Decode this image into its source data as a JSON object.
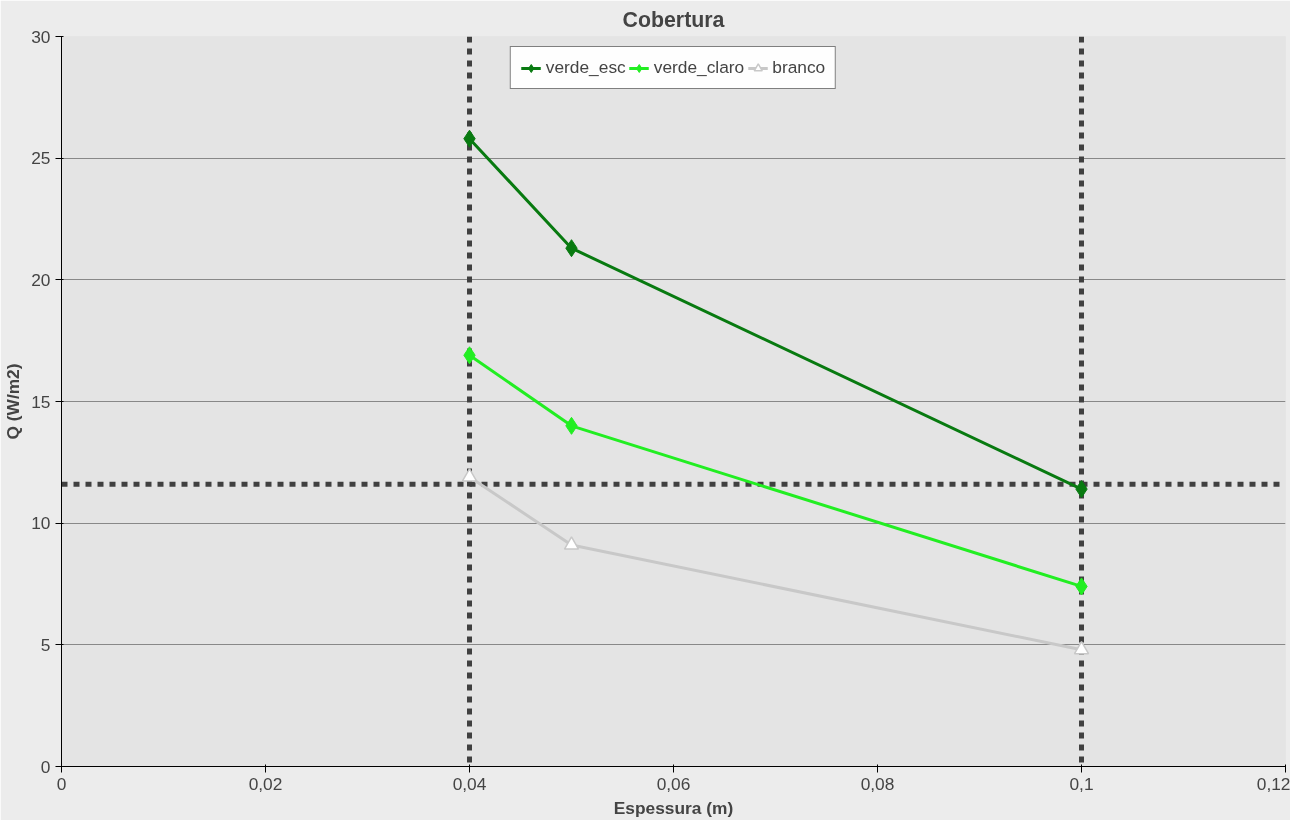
{
  "chart_data": {
    "type": "line",
    "title": "Cobertura",
    "xlabel": "Espessura (m)",
    "ylabel": "Q (W/m2)",
    "x": [
      0.04,
      0.05,
      0.1
    ],
    "series": [
      {
        "name": "verde_esc",
        "color": "#087a10",
        "values": [
          25.8,
          21.3,
          11.4
        ],
        "marker": "diamond"
      },
      {
        "name": "verde_claro",
        "color": "#22ee22",
        "values": [
          16.9,
          14.0,
          7.4
        ],
        "marker": "diamond"
      },
      {
        "name": "branco",
        "color": "#c8c8c8",
        "values": [
          11.9,
          9.1,
          4.8
        ],
        "marker": "triangle"
      }
    ],
    "xlim": [
      0,
      0.12
    ],
    "xticks": [
      0,
      {
        "value": 0.02,
        "label": "0,02"
      },
      {
        "value": 0.04,
        "label": "0,04"
      },
      {
        "value": 0.06,
        "label": "0,06"
      },
      {
        "value": 0.08,
        "label": "0,08"
      },
      {
        "value": 0.1,
        "label": "0,1"
      },
      {
        "value": 0.12,
        "label": "0,12"
      }
    ],
    "ylim": [
      0,
      30
    ],
    "yticks": [
      0,
      5,
      10,
      15,
      20,
      25,
      30
    ],
    "grid": "y",
    "legend": "top",
    "line_style": "solid",
    "ref_lines": [
      {
        "axis": "y",
        "value": 11.6,
        "color": "#404040",
        "line_style": "dashed"
      },
      {
        "axis": "x",
        "value": 0.04,
        "color": "#404040",
        "line_style": "dashed"
      },
      {
        "axis": "x",
        "value": 0.1,
        "color": "#404040",
        "line_style": "dashed"
      }
    ]
  }
}
